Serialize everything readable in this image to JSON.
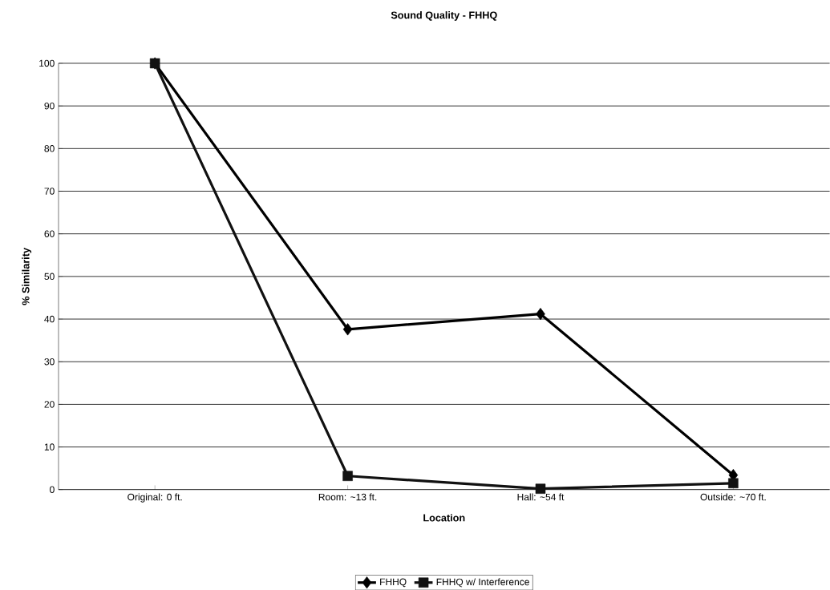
{
  "chart_data": {
    "type": "line",
    "title": "Sound Quality - FHHQ",
    "xlabel": "Location",
    "ylabel": "% Similarity",
    "categories": [
      "Original: 0 ft.",
      "Room: ~13 ft.",
      "Hall: ~54 ft",
      "Outside: ~70 ft."
    ],
    "series": [
      {
        "name": "FHHQ",
        "color": "#000000",
        "marker": "diamond",
        "values": [
          100,
          37.6,
          41.2,
          3.4
        ]
      },
      {
        "name": "FHHQ w/ Interference",
        "color": "#111111",
        "marker": "square",
        "values": [
          100,
          3.2,
          0.2,
          1.5
        ]
      }
    ],
    "ylim": [
      0,
      100
    ],
    "yticks": [
      0,
      10,
      20,
      30,
      40,
      50,
      60,
      70,
      80,
      90,
      100
    ],
    "grid": "y",
    "legend": "bottom",
    "line_style": "solid"
  }
}
